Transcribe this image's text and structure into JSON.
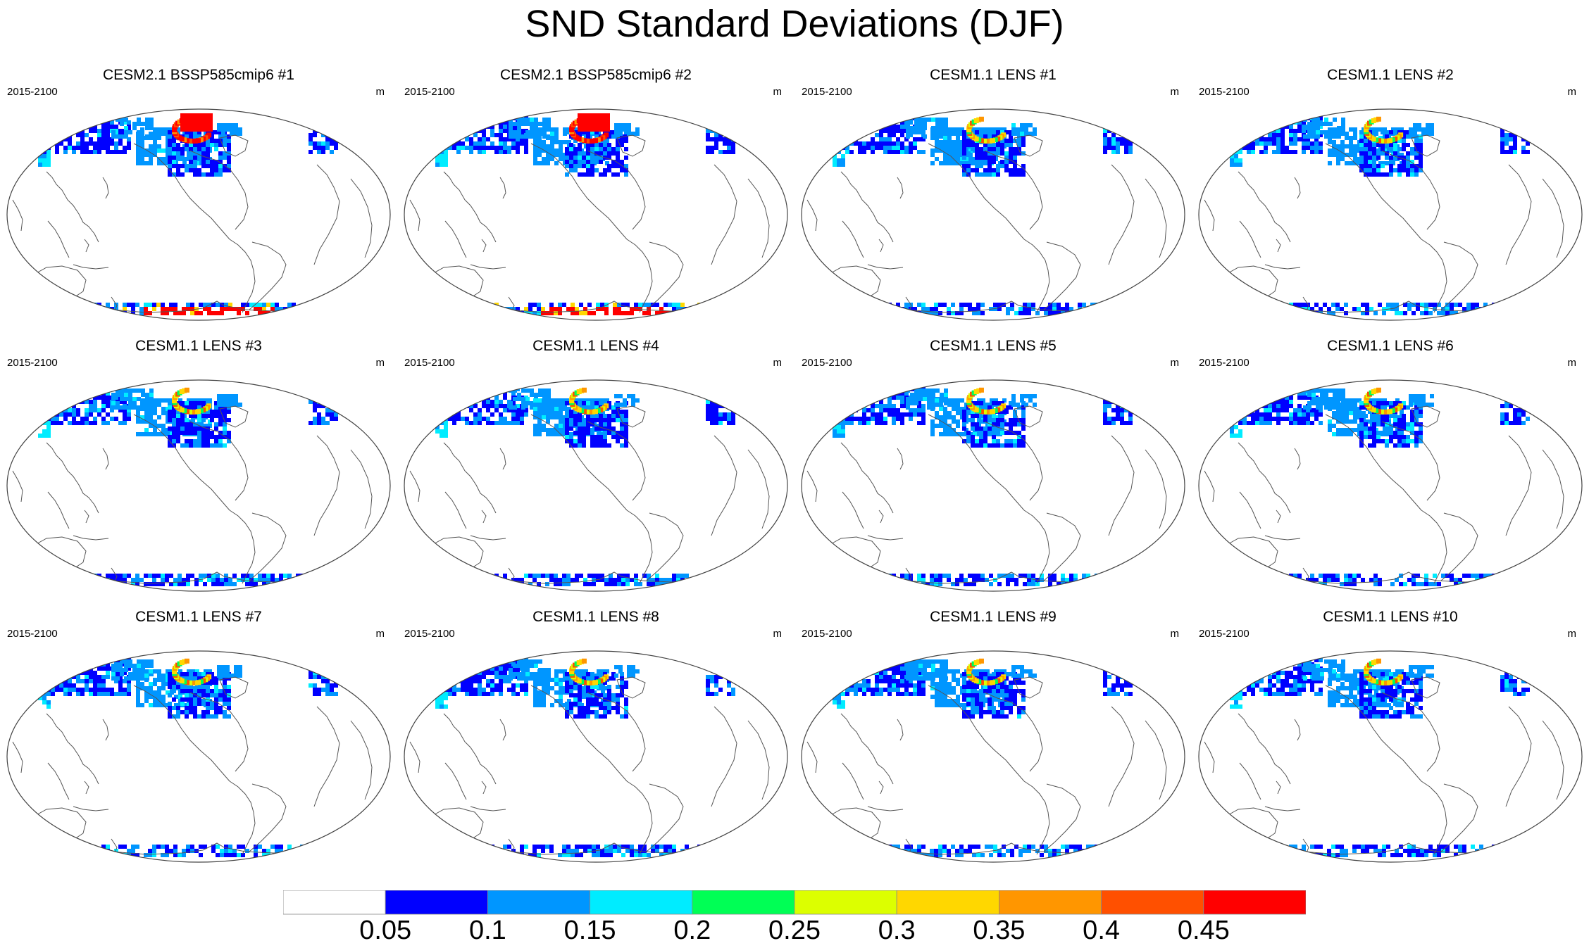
{
  "title": "SND Standard Deviations (DJF)",
  "panels": [
    {
      "title": "CESM2.1 BSSP585cmip6 #1",
      "period": "2015-2100",
      "units": "m",
      "intensity": "high"
    },
    {
      "title": "CESM2.1 BSSP585cmip6 #2",
      "period": "2015-2100",
      "units": "m",
      "intensity": "high"
    },
    {
      "title": "CESM1.1 LENS #1",
      "period": "2015-2100",
      "units": "m",
      "intensity": "low"
    },
    {
      "title": "CESM1.1 LENS #2",
      "period": "2015-2100",
      "units": "m",
      "intensity": "low"
    },
    {
      "title": "CESM1.1 LENS #3",
      "period": "2015-2100",
      "units": "m",
      "intensity": "low"
    },
    {
      "title": "CESM1.1 LENS #4",
      "period": "2015-2100",
      "units": "m",
      "intensity": "low"
    },
    {
      "title": "CESM1.1 LENS #5",
      "period": "2015-2100",
      "units": "m",
      "intensity": "low"
    },
    {
      "title": "CESM1.1 LENS #6",
      "period": "2015-2100",
      "units": "m",
      "intensity": "low"
    },
    {
      "title": "CESM1.1 LENS #7",
      "period": "2015-2100",
      "units": "m",
      "intensity": "low"
    },
    {
      "title": "CESM1.1 LENS #8",
      "period": "2015-2100",
      "units": "m",
      "intensity": "low"
    },
    {
      "title": "CESM1.1 LENS #9",
      "period": "2015-2100",
      "units": "m",
      "intensity": "low"
    },
    {
      "title": "CESM1.1 LENS #10",
      "period": "2015-2100",
      "units": "m",
      "intensity": "low"
    }
  ],
  "colorbar": {
    "labels": [
      "0.05",
      "0.1",
      "0.15",
      "0.2",
      "0.25",
      "0.3",
      "0.35",
      "0.4",
      "0.45"
    ],
    "colors": [
      "#ffffff",
      "#0000ff",
      "#0096ff",
      "#00ecff",
      "#00ff55",
      "#dcff00",
      "#ffd700",
      "#ff9600",
      "#ff5000",
      "#ff0000"
    ]
  },
  "layout": {
    "rows": 3,
    "cols": 4
  }
}
